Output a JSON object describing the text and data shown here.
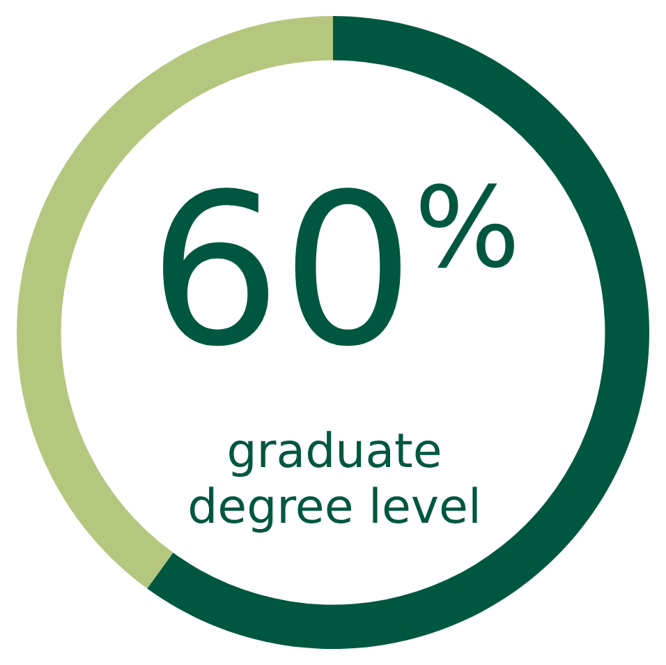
{
  "chart_data": {
    "type": "donut",
    "categories": [
      null,
      null
    ],
    "values": [
      60,
      40
    ],
    "colors": [
      "#00573f",
      "#b5c77e"
    ],
    "annotations": [
      "60$^{%}$",
      "graduate degree level"
    ]
  }
}
